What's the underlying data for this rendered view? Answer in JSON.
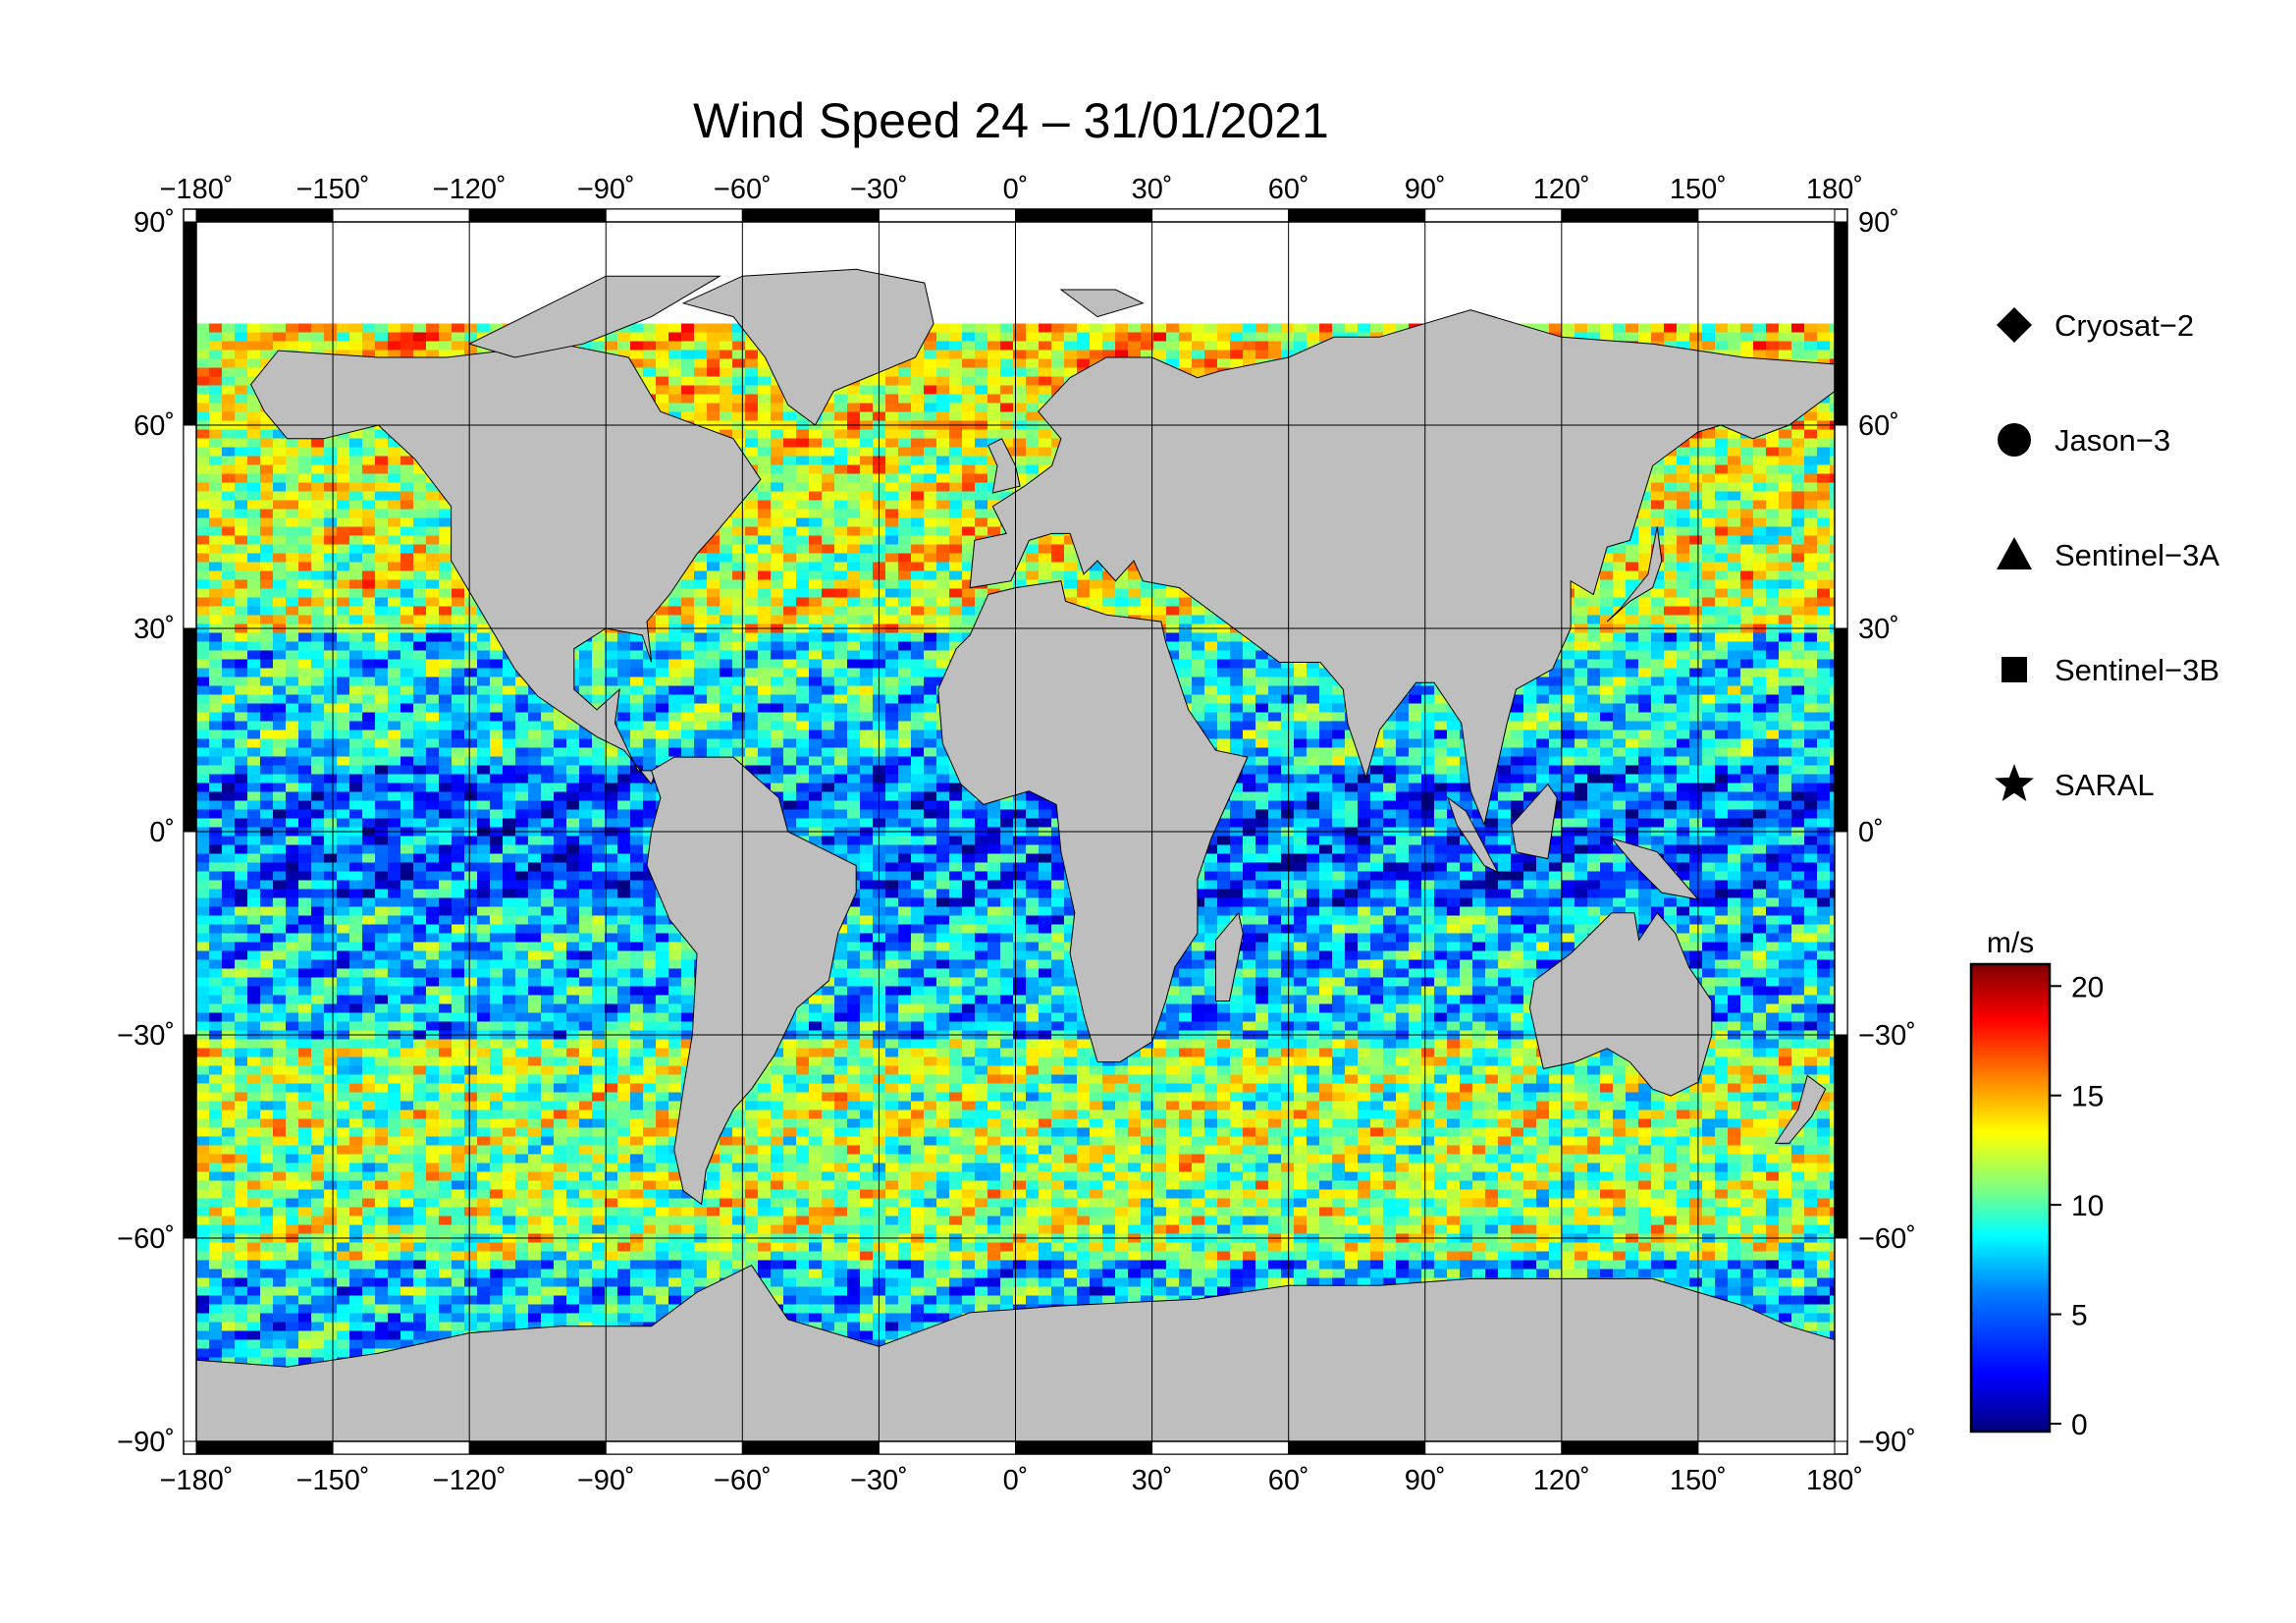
{
  "title": "Wind Speed 24 – 31/01/2021",
  "chart_data": {
    "type": "heatmap",
    "title": "Wind Speed 24 – 31/01/2021",
    "projection": "equirectangular",
    "x": {
      "ticks": [
        -180,
        -150,
        -120,
        -90,
        -60,
        -30,
        0,
        30,
        60,
        90,
        120,
        150,
        180
      ],
      "tick_labels": [
        "−180˚",
        "−150˚",
        "−120˚",
        "−90˚",
        "−60˚",
        "−30˚",
        "0˚",
        "30˚",
        "60˚",
        "90˚",
        "120˚",
        "150˚",
        "180˚"
      ],
      "range": [
        -180,
        180
      ]
    },
    "y": {
      "ticks": [
        90,
        60,
        30,
        0,
        -30,
        -60,
        -90
      ],
      "tick_labels": [
        "90˚",
        "60˚",
        "30˚",
        "0˚",
        "−30˚",
        "−60˚",
        "−90˚"
      ],
      "range": [
        -90,
        90
      ]
    },
    "grid": true,
    "legend_position": "right",
    "legend": [
      {
        "label": "Cryosat−2",
        "marker": "diamond"
      },
      {
        "label": "Jason−3",
        "marker": "circle"
      },
      {
        "label": "Sentinel−3A",
        "marker": "triangle"
      },
      {
        "label": "Sentinel−3B",
        "marker": "square"
      },
      {
        "label": "SARAL",
        "marker": "star"
      }
    ],
    "colorbar": {
      "unit": "m/s",
      "range": [
        0,
        21
      ],
      "ticks": [
        0,
        5,
        10,
        15,
        20
      ],
      "tick_labels": [
        "0",
        "5",
        "10",
        "15",
        "20"
      ],
      "colors": [
        "#00007f",
        "#0000ff",
        "#007fff",
        "#00ffff",
        "#7fff7f",
        "#ffff00",
        "#ff7f00",
        "#ff0000",
        "#7f0000"
      ]
    },
    "wind_speed_bands": [
      {
        "lat_range": [
          60,
          75
        ],
        "level": 13
      },
      {
        "lat_range": [
          30,
          60
        ],
        "level": 12
      },
      {
        "lat_range": [
          10,
          30
        ],
        "level": 8
      },
      {
        "lat_range": [
          -10,
          10
        ],
        "level": 5
      },
      {
        "lat_range": [
          -30,
          -10
        ],
        "level": 7
      },
      {
        "lat_range": [
          -62,
          -30
        ],
        "level": 11
      },
      {
        "lat_range": [
          -78,
          -62
        ],
        "level": 7
      }
    ],
    "colors": {
      "land": "#bebebe",
      "sea_ice": "#ffffff",
      "frame": "#000000"
    }
  }
}
